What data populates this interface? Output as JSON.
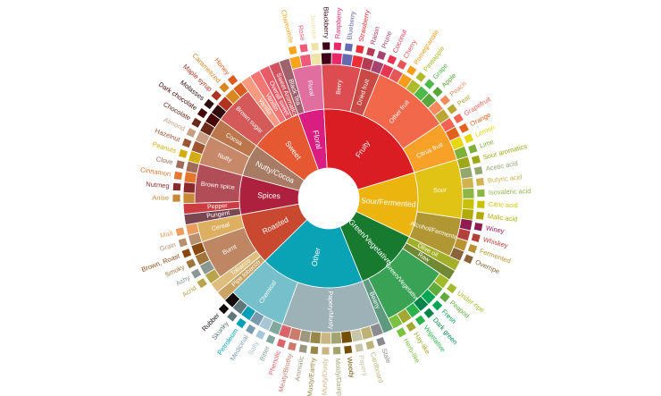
{
  "wheel": [
    {
      "label": "Floral",
      "color": "#da1d81",
      "children": [
        {
          "label": "Black Tea",
          "color": "#a0636e"
        },
        {
          "label": "Floral",
          "color": "#e06fa0",
          "children": [
            {
              "label": "Chamomile",
              "color": "#f7a41d"
            },
            {
              "label": "Rose",
              "color": "#ef5a78"
            },
            {
              "label": "Jasmine",
              "color": "#f0e3a8"
            }
          ]
        }
      ]
    },
    {
      "label": "Fruity",
      "color": "#da1d23",
      "children": [
        {
          "label": "Berry",
          "color": "#dd4c51",
          "children": [
            {
              "label": "Blackberry",
              "color": "#3e0317"
            },
            {
              "label": "Raspberry",
              "color": "#e62969"
            },
            {
              "label": "Blueberry",
              "color": "#6569b0"
            },
            {
              "label": "Strawberry",
              "color": "#ef2d36"
            }
          ]
        },
        {
          "label": "Dried fruit",
          "color": "#c94a44",
          "children": [
            {
              "label": "Raisin",
              "color": "#b53b54"
            },
            {
              "label": "Prune",
              "color": "#a5446f"
            }
          ]
        },
        {
          "label": "Other fruit",
          "color": "#f2684b",
          "children": [
            {
              "label": "Coconut",
              "color": "#e73451"
            },
            {
              "label": "Cherry",
              "color": "#e65656"
            },
            {
              "label": "Pomegranate",
              "color": "#f89a1c"
            },
            {
              "label": "Pineapple",
              "color": "#aeb92c"
            },
            {
              "label": "Grape",
              "color": "#4eb849"
            },
            {
              "label": "Apple",
              "color": "#5aa63c"
            },
            {
              "label": "Peach",
              "color": "#f68a5c"
            },
            {
              "label": "Pear",
              "color": "#baa635"
            }
          ]
        },
        {
          "label": "Citrus fruit",
          "color": "#f7a128",
          "children": [
            {
              "label": "Grapefruit",
              "color": "#f26355"
            },
            {
              "label": "Orange",
              "color": "#e2631e"
            },
            {
              "label": "Lemon",
              "color": "#e8d60e"
            },
            {
              "label": "Lime",
              "color": "#7eb138"
            }
          ]
        }
      ]
    },
    {
      "label": "Sour/Fermented",
      "color": "#ebb40f",
      "children": [
        {
          "label": "Sour",
          "color": "#e1c315",
          "children": [
            {
              "label": "Sour aromatics",
              "color": "#9ea718"
            },
            {
              "label": "Acetic acid",
              "color": "#94a76f"
            },
            {
              "label": "Butyric acid",
              "color": "#d0b24f"
            },
            {
              "label": "Isovaleric acid",
              "color": "#8eb646"
            },
            {
              "label": "Citric acid",
              "color": "#c9c107"
            },
            {
              "label": "Malic acid",
              "color": "#b0ab07"
            }
          ]
        },
        {
          "label": "Alcohol/Fermented",
          "color": "#b09733",
          "children": [
            {
              "label": "Winey",
              "color": "#8f1c53"
            },
            {
              "label": "Whiskey",
              "color": "#b34039"
            },
            {
              "label": "Fermented",
              "color": "#ba9232"
            },
            {
              "label": "Overripe",
              "color": "#8b6439"
            }
          ]
        }
      ]
    },
    {
      "label": "Green/Vegetative",
      "color": "#187a2f",
      "children": [
        {
          "label": "Olive oil",
          "color": "#a2b029"
        },
        {
          "label": "Raw",
          "color": "#718933"
        },
        {
          "label": "Green/Vegetative",
          "color": "#3aa255",
          "children": [
            {
              "label": "Under-ripe",
              "color": "#a2bb2b"
            },
            {
              "label": "Peapod",
              "color": "#62aa3c"
            },
            {
              "label": "Fresh",
              "color": "#03a653"
            },
            {
              "label": "Dark green",
              "color": "#038549"
            },
            {
              "label": "Vegetative",
              "color": "#28b44b"
            },
            {
              "label": "Hay-like",
              "color": "#a3a830"
            },
            {
              "label": "Herb-like",
              "color": "#7ac141"
            }
          ]
        },
        {
          "label": "Beany",
          "color": "#5e9a80"
        }
      ]
    },
    {
      "label": "Other",
      "color": "#0aa3b5",
      "children": [
        {
          "label": "Papery/Musty",
          "color": "#9db2b7",
          "children": [
            {
              "label": "Stale",
              "color": "#8b8c90"
            },
            {
              "label": "Cardboard",
              "color": "#beb276"
            },
            {
              "label": "Papery",
              "color": "#c8c6a8"
            },
            {
              "label": "Woody",
              "color": "#744e03"
            },
            {
              "label": "Moldy/Damp",
              "color": "#a3a36f"
            },
            {
              "label": "Musty/Dusty",
              "color": "#c9b583"
            },
            {
              "label": "Musty/Earthy",
              "color": "#978847"
            },
            {
              "label": "Animalic",
              "color": "#9d977f"
            },
            {
              "label": "Meaty/Brothy",
              "color": "#cc7b6a"
            },
            {
              "label": "Phenolic",
              "color": "#db646a"
            }
          ]
        },
        {
          "label": "Chemical",
          "color": "#76c0cb",
          "children": [
            {
              "label": "Bitter",
              "color": "#80a89d"
            },
            {
              "label": "Salty",
              "color": "#a8c6d6"
            },
            {
              "label": "Medicinal",
              "color": "#7a9bae"
            },
            {
              "label": "Petroleum",
              "color": "#039fb8"
            },
            {
              "label": "Skunky",
              "color": "#5e777b"
            },
            {
              "label": "Rubber",
              "color": "#120c0c"
            }
          ]
        }
      ]
    },
    {
      "label": "Roasted",
      "color": "#c94930",
      "children": [
        {
          "label": "Pipe tobacco",
          "color": "#caa465"
        },
        {
          "label": "Tobacco",
          "color": "#dfbd7e"
        },
        {
          "label": "Burnt",
          "color": "#be8663",
          "children": [
            {
              "label": "Acrid",
              "color": "#b9a449"
            },
            {
              "label": "Ashy",
              "color": "#899893"
            },
            {
              "label": "Smoky",
              "color": "#a1743b"
            },
            {
              "label": "Brown, Roast",
              "color": "#894810"
            }
          ]
        },
        {
          "label": "Cereal",
          "color": "#ddaf61",
          "children": [
            {
              "label": "Grain",
              "color": "#b7906f"
            },
            {
              "label": "Malt",
              "color": "#eb9d5f"
            }
          ]
        }
      ]
    },
    {
      "label": "Spices",
      "color": "#ad213e",
      "children": [
        {
          "label": "Pungent",
          "color": "#794752"
        },
        {
          "label": "Pepper",
          "color": "#cc3d41"
        },
        {
          "label": "Brown spice",
          "color": "#b14d57",
          "children": [
            {
              "label": "Anise",
              "color": "#c78936"
            },
            {
              "label": "Nutmeg",
              "color": "#8c292c"
            },
            {
              "label": "Cinnamon",
              "color": "#e5762e"
            },
            {
              "label": "Clove",
              "color": "#a16c5a"
            }
          ]
        }
      ]
    },
    {
      "label": "Nutty/Cocoa",
      "color": "#a87b64",
      "children": [
        {
          "label": "Nutty",
          "color": "#c78869",
          "children": [
            {
              "label": "Peanuts",
              "color": "#d4ad12"
            },
            {
              "label": "Hazelnut",
              "color": "#9d5433"
            },
            {
              "label": "Almond",
              "color": "#c89f83"
            }
          ]
        },
        {
          "label": "Cocoa",
          "color": "#bb764c",
          "children": [
            {
              "label": "Chocolate",
              "color": "#692a19"
            },
            {
              "label": "Dark chocolate",
              "color": "#470604"
            }
          ]
        }
      ]
    },
    {
      "label": "Sweet",
      "color": "#e65832",
      "children": [
        {
          "label": "Brown sugar",
          "color": "#d45a59",
          "children": [
            {
              "label": "Molasses",
              "color": "#310d0f"
            },
            {
              "label": "Maple syrup",
              "color": "#ae341f"
            },
            {
              "label": "Caramelized",
              "color": "#d78823"
            },
            {
              "label": "Honey",
              "color": "#da5c1f"
            }
          ]
        },
        {
          "label": "Vanilla",
          "color": "#f89a80"
        },
        {
          "label": "Vanillin",
          "color": "#f37674"
        },
        {
          "label": "Overall sweet",
          "color": "#e75b68"
        },
        {
          "label": "Sweet Aromatics",
          "color": "#d0545f"
        }
      ]
    }
  ]
}
